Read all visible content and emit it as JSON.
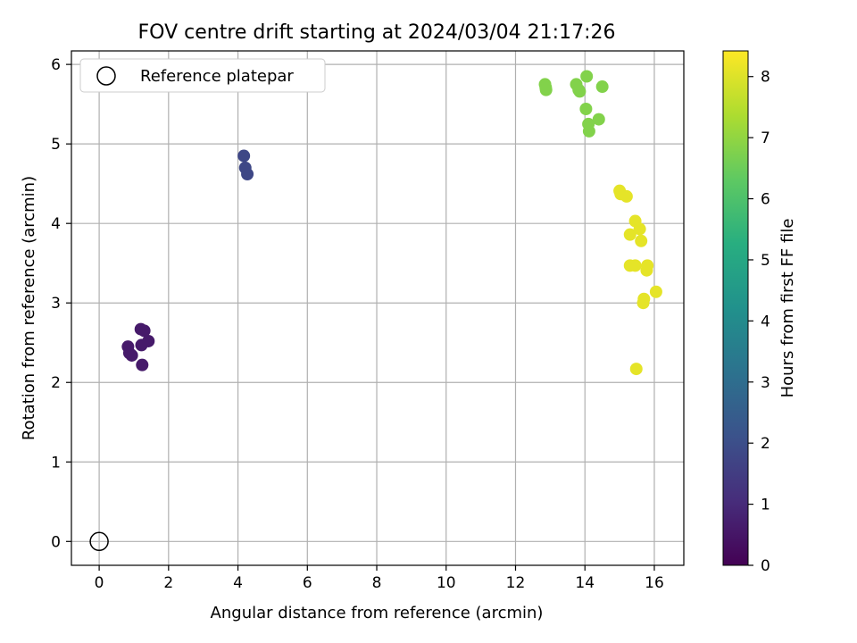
{
  "chart_data": {
    "type": "scatter",
    "title": "FOV centre drift starting at 2024/03/04 21:17:26",
    "xlabel": "Angular distance from reference (arcmin)",
    "ylabel": "Rotation from reference (arcmin)",
    "xlim": [
      -0.8,
      16.85
    ],
    "ylim": [
      -0.3,
      6.17
    ],
    "xticks": [
      0,
      2,
      4,
      6,
      8,
      10,
      12,
      14,
      16
    ],
    "yticks": [
      0,
      1,
      2,
      3,
      4,
      5,
      6
    ],
    "grid": true,
    "legend": {
      "placement": "top-left",
      "entries": [
        "Reference platepar"
      ]
    },
    "reference_point": {
      "name": "Reference platepar",
      "x": 0,
      "y": 0
    },
    "colorbar": {
      "label": "Hours from first FF file",
      "colormap": "viridis",
      "range": [
        0,
        8.42
      ],
      "ticks": [
        0,
        1,
        2,
        3,
        4,
        5,
        6,
        7,
        8
      ]
    },
    "points": [
      {
        "x": 0.83,
        "y": 2.45,
        "c": 0.6
      },
      {
        "x": 0.87,
        "y": 2.37,
        "c": 0.6
      },
      {
        "x": 0.94,
        "y": 2.34,
        "c": 0.6
      },
      {
        "x": 1.2,
        "y": 2.67,
        "c": 0.6
      },
      {
        "x": 1.3,
        "y": 2.65,
        "c": 0.6
      },
      {
        "x": 1.22,
        "y": 2.47,
        "c": 0.6
      },
      {
        "x": 1.42,
        "y": 2.52,
        "c": 0.6
      },
      {
        "x": 1.24,
        "y": 2.22,
        "c": 0.6
      },
      {
        "x": 4.17,
        "y": 4.85,
        "c": 1.8
      },
      {
        "x": 4.21,
        "y": 4.7,
        "c": 1.8
      },
      {
        "x": 4.27,
        "y": 4.62,
        "c": 1.8
      },
      {
        "x": 12.85,
        "y": 5.75,
        "c": 6.8
      },
      {
        "x": 12.87,
        "y": 5.71,
        "c": 6.8
      },
      {
        "x": 12.88,
        "y": 5.68,
        "c": 6.8
      },
      {
        "x": 13.75,
        "y": 5.75,
        "c": 6.8
      },
      {
        "x": 13.85,
        "y": 5.66,
        "c": 6.8
      },
      {
        "x": 13.82,
        "y": 5.68,
        "c": 6.8
      },
      {
        "x": 14.05,
        "y": 5.85,
        "c": 6.8
      },
      {
        "x": 14.5,
        "y": 5.72,
        "c": 6.8
      },
      {
        "x": 14.03,
        "y": 5.44,
        "c": 6.8
      },
      {
        "x": 14.1,
        "y": 5.25,
        "c": 6.8
      },
      {
        "x": 14.4,
        "y": 5.31,
        "c": 6.8
      },
      {
        "x": 14.12,
        "y": 5.16,
        "c": 6.8
      },
      {
        "x": 15.0,
        "y": 4.41,
        "c": 8.1
      },
      {
        "x": 15.03,
        "y": 4.37,
        "c": 8.1
      },
      {
        "x": 15.2,
        "y": 4.34,
        "c": 8.1
      },
      {
        "x": 15.45,
        "y": 4.03,
        "c": 8.1
      },
      {
        "x": 15.58,
        "y": 3.93,
        "c": 8.1
      },
      {
        "x": 15.3,
        "y": 3.86,
        "c": 8.1
      },
      {
        "x": 15.62,
        "y": 3.78,
        "c": 8.1
      },
      {
        "x": 15.3,
        "y": 3.47,
        "c": 8.1
      },
      {
        "x": 15.45,
        "y": 3.47,
        "c": 8.1
      },
      {
        "x": 15.8,
        "y": 3.47,
        "c": 8.1
      },
      {
        "x": 15.78,
        "y": 3.41,
        "c": 8.1
      },
      {
        "x": 16.05,
        "y": 3.14,
        "c": 8.1
      },
      {
        "x": 15.7,
        "y": 3.05,
        "c": 8.1
      },
      {
        "x": 15.68,
        "y": 3.0,
        "c": 8.1
      },
      {
        "x": 15.48,
        "y": 2.17,
        "c": 8.1
      }
    ]
  }
}
